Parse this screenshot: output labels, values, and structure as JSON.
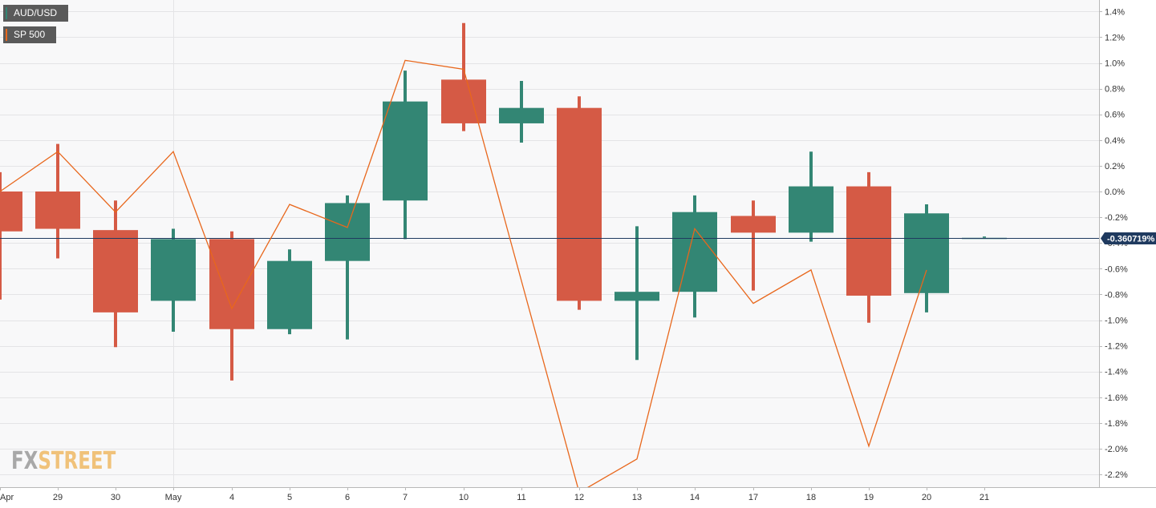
{
  "chart_data": {
    "type": "candlestick",
    "series": [
      {
        "name": "AUD/USD",
        "kind": "candlestick",
        "color_up": "#338674",
        "color_down": "#d55a45",
        "candles": [
          {
            "x": "28",
            "open": 0.0,
            "close": -0.31,
            "high": 0.15,
            "low": -0.84
          },
          {
            "x": "29",
            "open": 0.0,
            "close": -0.29,
            "high": 0.37,
            "low": -0.52
          },
          {
            "x": "30",
            "open": -0.3,
            "close": -0.94,
            "high": -0.07,
            "low": -1.21
          },
          {
            "x": "May",
            "open": -0.85,
            "close": -0.37,
            "high": -0.29,
            "low": -1.09
          },
          {
            "x": "4",
            "open": -0.37,
            "close": -1.07,
            "high": -0.31,
            "low": -1.47
          },
          {
            "x": "5",
            "open": -1.07,
            "close": -0.54,
            "high": -0.45,
            "low": -1.11
          },
          {
            "x": "6",
            "open": -0.54,
            "close": -0.09,
            "high": -0.03,
            "low": -1.15
          },
          {
            "x": "7",
            "open": -0.07,
            "close": 0.7,
            "high": 0.94,
            "low": -0.37
          },
          {
            "x": "10",
            "open": 0.87,
            "close": 0.53,
            "high": 1.31,
            "low": 0.47
          },
          {
            "x": "11",
            "open": 0.53,
            "close": 0.65,
            "high": 0.86,
            "low": 0.38
          },
          {
            "x": "12",
            "open": 0.65,
            "close": -0.85,
            "high": 0.74,
            "low": -0.92
          },
          {
            "x": "13",
            "open": -0.85,
            "close": -0.78,
            "high": -0.27,
            "low": -1.31
          },
          {
            "x": "14",
            "open": -0.78,
            "close": -0.16,
            "high": -0.03,
            "low": -0.98
          },
          {
            "x": "17",
            "open": -0.19,
            "close": -0.32,
            "high": -0.07,
            "low": -0.77
          },
          {
            "x": "18",
            "open": -0.32,
            "close": 0.04,
            "high": 0.31,
            "low": -0.39
          },
          {
            "x": "19",
            "open": 0.04,
            "close": -0.81,
            "high": 0.15,
            "low": -1.02
          },
          {
            "x": "20",
            "open": -0.79,
            "close": -0.17,
            "high": -0.1,
            "low": -0.94
          },
          {
            "x": "21",
            "open": -0.36,
            "close": -0.36,
            "high": -0.35,
            "low": -0.36
          }
        ]
      },
      {
        "name": "SP 500",
        "kind": "line",
        "color": "#e8671c",
        "values": [
          {
            "x": "28",
            "y": 0.0
          },
          {
            "x": "29",
            "y": 0.31
          },
          {
            "x": "30",
            "y": -0.16
          },
          {
            "x": "May",
            "y": 0.31
          },
          {
            "x": "4",
            "y": -0.91
          },
          {
            "x": "5",
            "y": -0.1
          },
          {
            "x": "6",
            "y": -0.28
          },
          {
            "x": "7",
            "y": 1.02
          },
          {
            "x": "10",
            "y": 0.95
          },
          {
            "x": "12",
            "y": -2.34
          },
          {
            "x": "13",
            "y": -2.08
          },
          {
            "x": "14",
            "y": -0.29
          },
          {
            "x": "17",
            "y": -0.87
          },
          {
            "x": "18",
            "y": -0.61
          },
          {
            "x": "19",
            "y": -1.98
          },
          {
            "x": "20",
            "y": -0.61
          }
        ]
      }
    ],
    "x_tick_labels": [
      "Apr",
      "29",
      "30",
      "May",
      "4",
      "5",
      "6",
      "7",
      "10",
      "11",
      "12",
      "13",
      "14",
      "17",
      "18",
      "19",
      "20",
      "21"
    ],
    "y_ticks": [
      1.4,
      1.2,
      1.0,
      0.8,
      0.6,
      0.4,
      0.2,
      0.0,
      -0.2,
      -0.4,
      -0.6,
      -0.8,
      -1.0,
      -1.2,
      -1.4,
      -1.6,
      -1.8,
      -2.0,
      -2.2
    ],
    "y_tick_labels": [
      "1.4%",
      "1.2%",
      "1.0%",
      "0.8%",
      "0.6%",
      "0.4%",
      "0.2%",
      "0.0%",
      "-0.2%",
      "-0.4%",
      "-0.6%",
      "-0.8%",
      "-1.0%",
      "-1.2%",
      "-1.4%",
      "-1.6%",
      "-1.8%",
      "-2.0%",
      "-2.2%"
    ],
    "ylim": [
      -2.28,
      1.45
    ],
    "y_axis_position": "right",
    "current_value": -0.36,
    "current_value_label": "-0.360719%",
    "legend_position": "top-left",
    "grid": true,
    "colors": {
      "background": "#f8f8f9",
      "grid": "#e4e4e6",
      "axis": "#b8b8b8",
      "current_line": "#1f3a5f",
      "current_badge": "#1f3a5f"
    },
    "title": "",
    "xlabel": "",
    "ylabel": ""
  },
  "legend": {
    "items": [
      {
        "label": "AUD/USD",
        "color": "#338674"
      },
      {
        "label": "SP 500",
        "color": "#e8671c"
      }
    ]
  },
  "logo": {
    "part1": "FX",
    "part2": "STREET"
  }
}
